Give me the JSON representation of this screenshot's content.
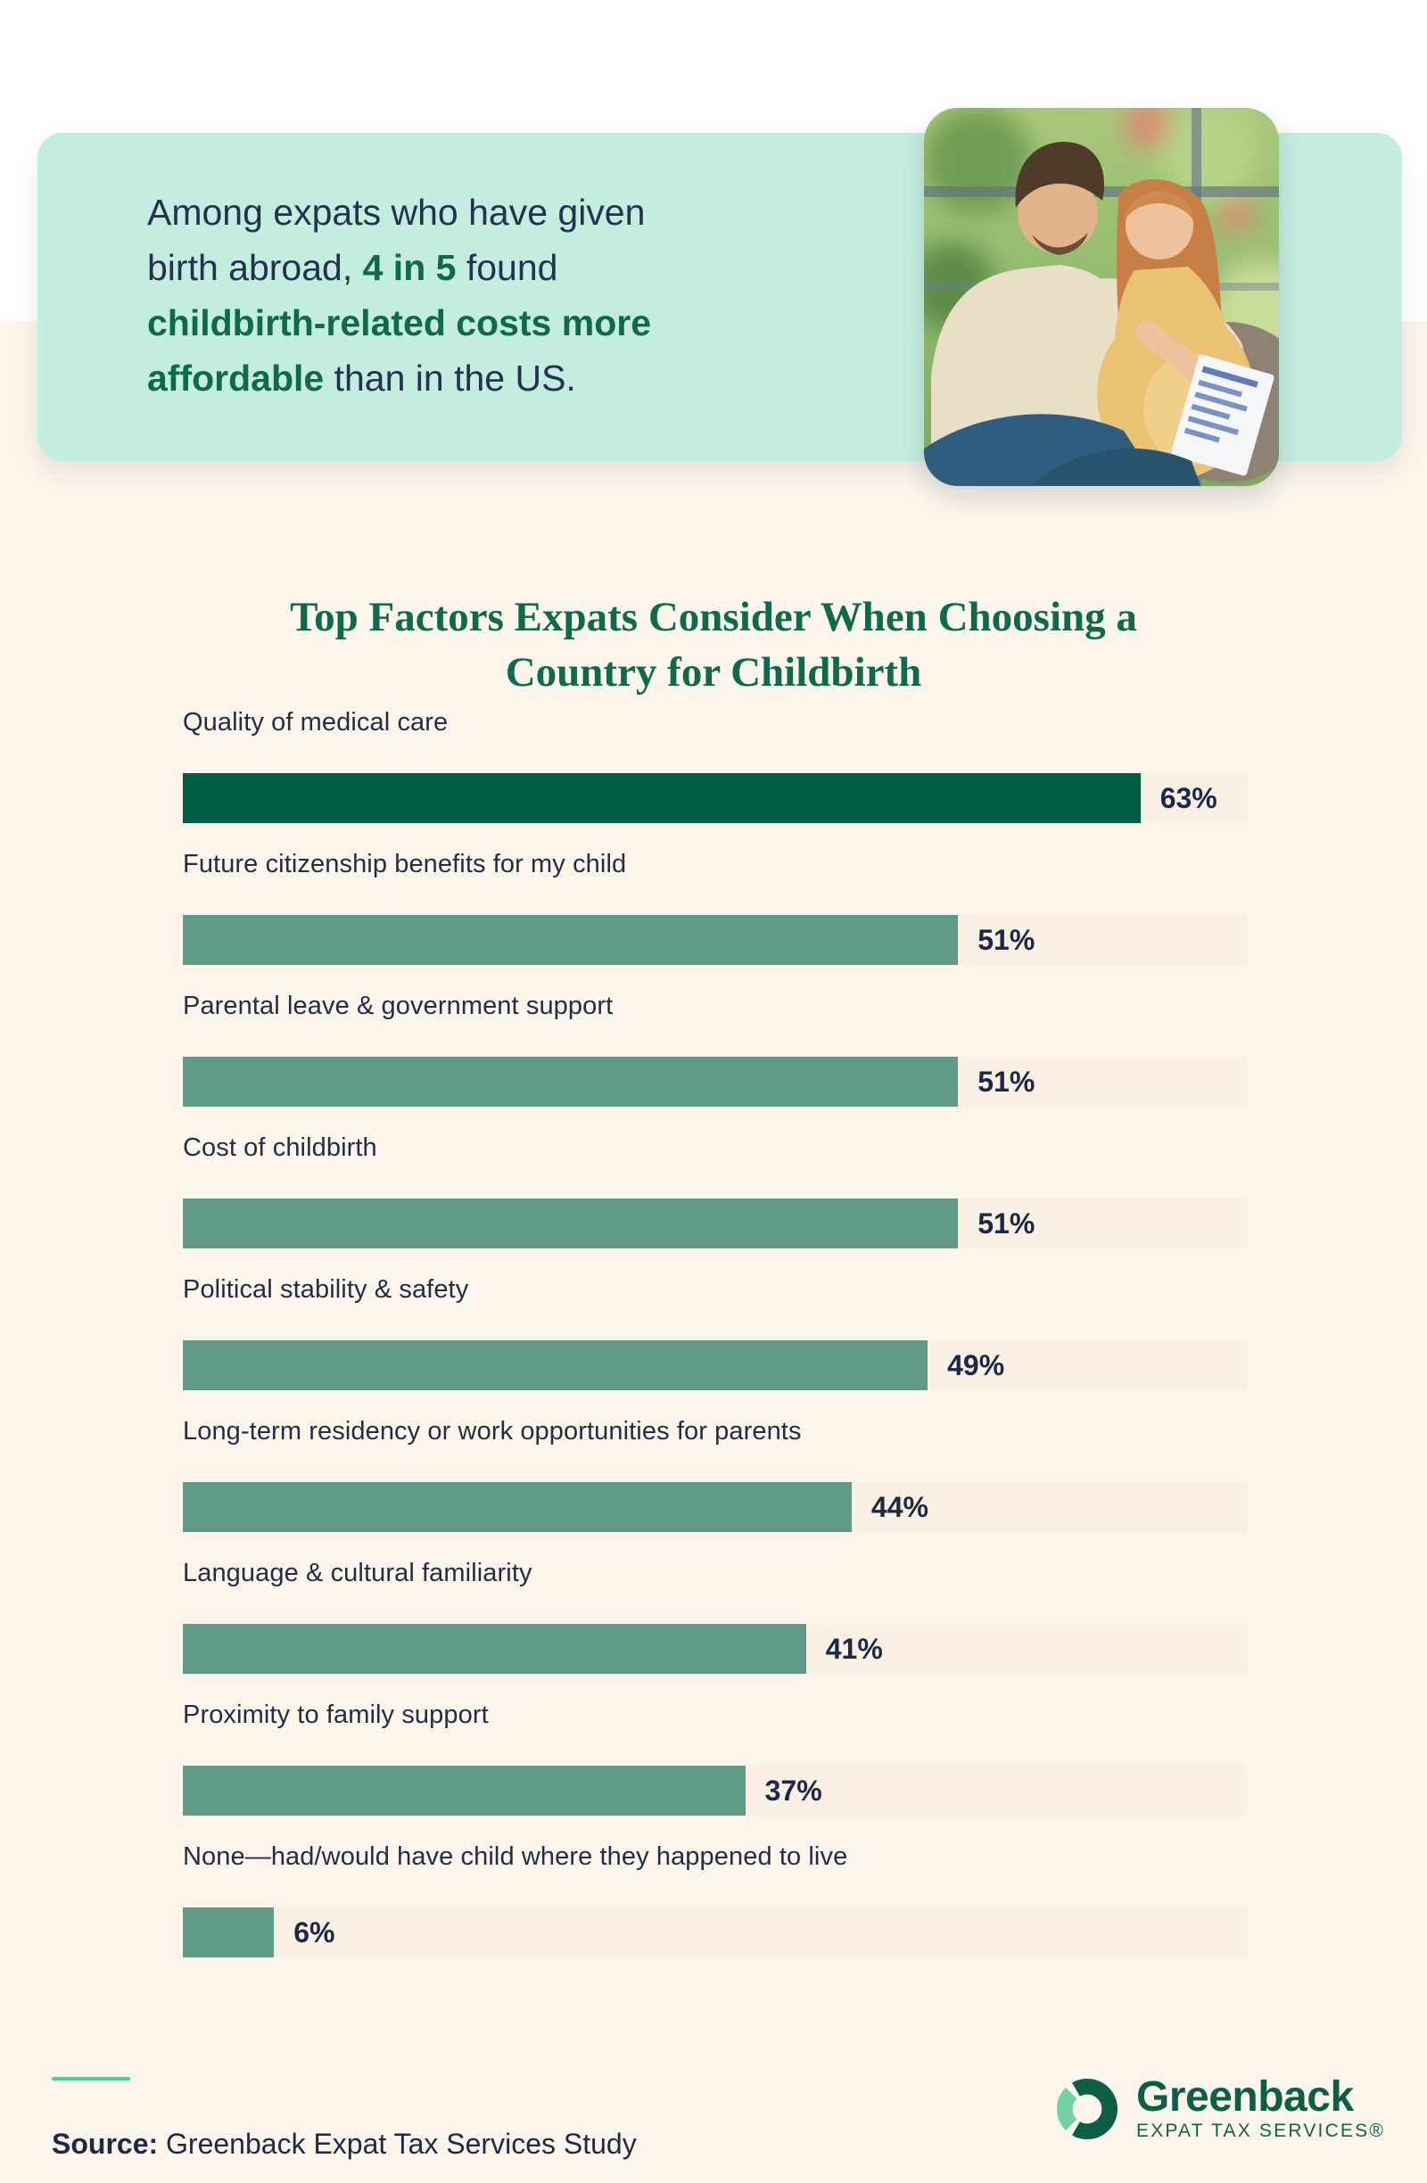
{
  "callout": {
    "lines": [
      [
        {
          "text": "Among expats who have given",
          "emphasis": false
        }
      ],
      [
        {
          "text": "birth abroad, ",
          "emphasis": false
        },
        {
          "text": "4 in 5",
          "emphasis": true
        },
        {
          "text": " found",
          "emphasis": false
        }
      ],
      [
        {
          "text": "childbirth-related costs more",
          "emphasis": true
        }
      ],
      [
        {
          "text": "affordable",
          "emphasis": true
        },
        {
          "text": " than in the US.",
          "emphasis": false
        }
      ]
    ]
  },
  "title": {
    "line1": "Top Factors Expats Consider When Choosing a",
    "line2": "Country for Childbirth"
  },
  "chart_data": {
    "type": "bar",
    "orientation": "horizontal",
    "title": "Top Factors Expats Consider When Choosing a Country for Childbirth",
    "value_suffix": "%",
    "xlim": [
      0,
      70
    ],
    "grid": false,
    "legend": false,
    "categories": [
      "Quality of medical care",
      "Future citizenship benefits for my child",
      "Parental leave & government support",
      "Cost of childbirth",
      "Political stability & safety",
      "Long-term residency or work opportunities for parents",
      "Language & cultural familiarity",
      "Proximity to family support",
      "None—had/would have child where they happened to live"
    ],
    "values": [
      63,
      51,
      51,
      51,
      49,
      44,
      41,
      37,
      6
    ],
    "items": [
      {
        "label": "Quality of medical care",
        "value": 63,
        "display": "63%",
        "color": "#015d42"
      },
      {
        "label": "Future citizenship benefits for my child",
        "value": 51,
        "display": "51%",
        "color": "#5f9b86"
      },
      {
        "label": "Parental leave & government support",
        "value": 51,
        "display": "51%",
        "color": "#5f9b86"
      },
      {
        "label": "Cost of childbirth",
        "value": 51,
        "display": "51%",
        "color": "#5f9b86"
      },
      {
        "label": "Political stability & safety",
        "value": 49,
        "display": "49%",
        "color": "#5f9b86"
      },
      {
        "label": "Long-term residency or work opportunities for parents",
        "value": 44,
        "display": "44%",
        "color": "#5f9b86"
      },
      {
        "label": "Language & cultural familiarity",
        "value": 41,
        "display": "41%",
        "color": "#5f9b86"
      },
      {
        "label": "Proximity to family support",
        "value": 37,
        "display": "37%",
        "color": "#5f9b86"
      },
      {
        "label": "None—had/would have child where they happened to live",
        "value": 6,
        "display": "6%",
        "color": "#5f9b86"
      }
    ],
    "track_color": "#f9efe2"
  },
  "footer": {
    "source_label": "Source:",
    "source_text": " Greenback Expat Tax Services Study"
  },
  "logo": {
    "name": "Greenback",
    "tagline": "EXPAT TAX SERVICES®",
    "icon": "greenback-ring-logo"
  },
  "icons": {
    "photo": "couple-reviewing-document-photo"
  },
  "colors": {
    "page_top": "#ffffff",
    "page_lower": "#fbf5ec",
    "callout_background": "#c3edde",
    "callout_navy": "#24324f",
    "brand_green": "#0e6a4b",
    "bar_primary": "#015d42",
    "bar_secondary": "#5f9b86",
    "bar_track": "#f9efe2",
    "label_navy": "#232e44",
    "value_navy": "#1b2946",
    "accent_line_green": "#3cd79b",
    "logo_dark_green": "#0c5f45",
    "logo_light_green": "#72d2a4"
  }
}
